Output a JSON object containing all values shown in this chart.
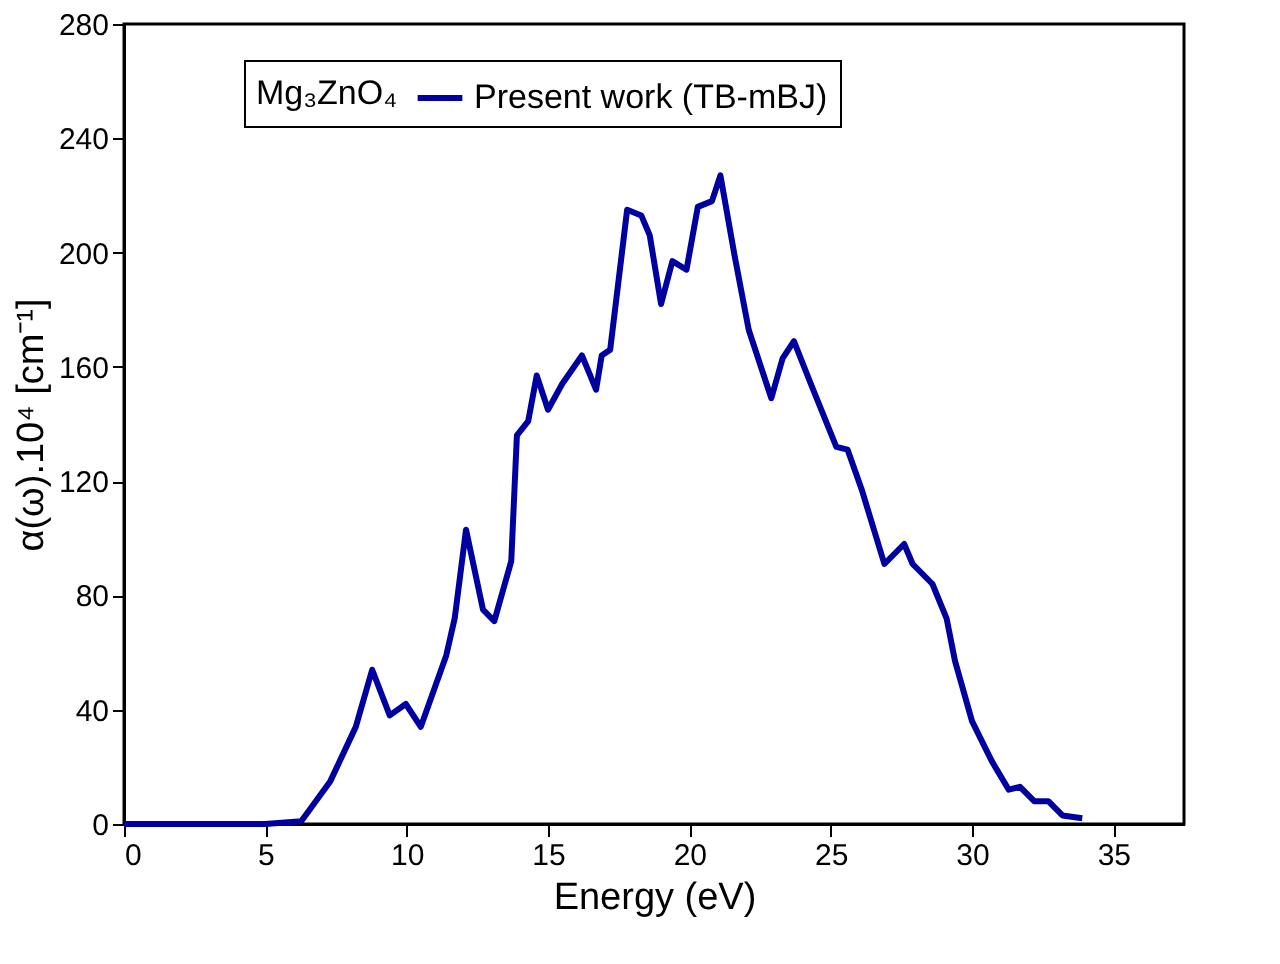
{
  "chart_data": {
    "type": "line",
    "xlabel": "Energy (eV)",
    "ylabel": "α(ω).10⁴ [cm⁻¹]",
    "legend_title": "Mg₃ZnO₄",
    "legend": "top",
    "xlim": [
      0,
      37.5
    ],
    "xticks": [
      0,
      5,
      10,
      15,
      20,
      25,
      30,
      35
    ],
    "ylim": [
      0,
      280
    ],
    "yticks": [
      0,
      40,
      80,
      120,
      160,
      200,
      240,
      280
    ],
    "grid": false,
    "line_style": "solid",
    "marker": "none",
    "series": [
      {
        "name": "Present work (TB-mBJ)",
        "color": "#0000a0",
        "x": [
          0,
          3,
          5,
          6.27,
          7.3,
          8.2,
          8.78,
          9.4,
          9.97,
          10.5,
          11.4,
          11.7,
          12.1,
          12.7,
          13.1,
          13.7,
          13.9,
          14.3,
          14.6,
          15.0,
          15.5,
          16.2,
          16.7,
          16.9,
          17.2,
          17.8,
          18.3,
          18.6,
          19.0,
          19.4,
          19.9,
          20.3,
          20.8,
          21.1,
          21.6,
          22.1,
          22.9,
          23.3,
          23.7,
          24.3,
          25.2,
          25.6,
          26.1,
          26.9,
          27.6,
          27.9,
          28.6,
          29.1,
          29.4,
          30.0,
          30.7,
          31.3,
          31.7,
          32.2,
          32.7,
          33.2,
          33.9
        ],
        "values": [
          0,
          0,
          0,
          1,
          15,
          34,
          54,
          38,
          42,
          34,
          59,
          72,
          103,
          75,
          71,
          92,
          136,
          141,
          157,
          145,
          154,
          164,
          152,
          164,
          166,
          215,
          213,
          206,
          182,
          197,
          194,
          216,
          218,
          227,
          199,
          173,
          149,
          163,
          169,
          154,
          132,
          131,
          117,
          91,
          98,
          91,
          84,
          72,
          57,
          36,
          22,
          12,
          13,
          8,
          8,
          3,
          2
        ]
      }
    ]
  }
}
